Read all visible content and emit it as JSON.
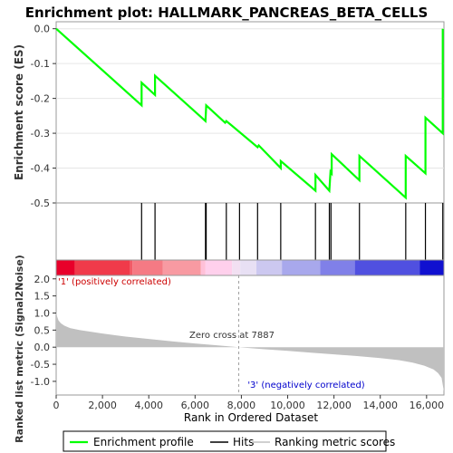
{
  "title": "Enrichment plot: HALLMARK_PANCREAS_BETA_CELLS",
  "colors": {
    "es_line": "#00ff00",
    "hits": "#000000",
    "metric_fill": "#c0c0c0",
    "pos_label": "#cc0000",
    "neg_label": "#0000cc",
    "zero_cross_line": "#a0a0a0"
  },
  "chart_data": [
    {
      "type": "line",
      "name": "enrichment-score-panel",
      "ylabel": "Enrichment score (ES)",
      "xlim": [
        0,
        16750
      ],
      "ylim": [
        -0.5,
        0.02
      ],
      "yticks": [
        0.0,
        -0.1,
        -0.2,
        -0.3,
        -0.4,
        -0.5
      ],
      "ytick_labels": [
        "0.0",
        "-0.1",
        "-0.2",
        "-0.3",
        "-0.4",
        "-0.5"
      ],
      "series": [
        {
          "x": [
            0,
            3690,
            3690,
            4270,
            4270,
            6450,
            6480,
            7300,
            7350,
            8700,
            8750,
            9700,
            9700,
            11200,
            11200,
            11800,
            11850,
            11900,
            11900,
            13100,
            13100,
            15100,
            15100,
            15950,
            15950,
            16700,
            16700
          ],
          "y": [
            0.0,
            -0.22,
            -0.155,
            -0.19,
            -0.135,
            -0.265,
            -0.22,
            -0.27,
            -0.265,
            -0.34,
            -0.335,
            -0.4,
            -0.38,
            -0.465,
            -0.42,
            -0.465,
            -0.41,
            -0.415,
            -0.36,
            -0.435,
            -0.365,
            -0.485,
            -0.365,
            -0.415,
            -0.255,
            -0.3,
            0.0
          ]
        }
      ]
    },
    {
      "type": "hits",
      "name": "hits-panel",
      "x": [
        3690,
        4270,
        6450,
        6480,
        7350,
        7920,
        8700,
        9700,
        11200,
        11800,
        11870,
        13100,
        15100,
        15950,
        16700
      ]
    },
    {
      "type": "heatmap",
      "name": "ranking-color-bar",
      "x": [
        0,
        800,
        3200,
        3300,
        4600,
        6250,
        6450,
        7600,
        7950,
        8650,
        9750,
        11400,
        12900,
        15700,
        16750
      ],
      "colors": [
        "#e8002a",
        "#f03a4a",
        "#f25a66",
        "#f57a84",
        "#f89aa2",
        "#ffc0d8",
        "#ffd0ec",
        "#f2e0f2",
        "#e8e0f4",
        "#ccc8f0",
        "#a8a8ec",
        "#8080e8",
        "#5050e0",
        "#1010d0"
      ]
    },
    {
      "type": "area",
      "name": "ranked-metric-panel",
      "ylabel": "Ranked list metric (Signal2Noise)",
      "xlabel": "Rank in Ordered Dataset",
      "xlim": [
        0,
        16750
      ],
      "ylim": [
        -1.4,
        2.1
      ],
      "yticks": [
        2.0,
        1.5,
        1.0,
        0.5,
        0.0,
        -0.5,
        -1.0
      ],
      "ytick_labels": [
        "2.0",
        "1.5",
        "1.0",
        "0.5",
        "0.0",
        "-0.5",
        "-1.0"
      ],
      "xticks": [
        0,
        2000,
        4000,
        6000,
        8000,
        10000,
        12000,
        14000,
        16000
      ],
      "xtick_labels": [
        "0",
        "2,000",
        "4,000",
        "6,000",
        "8,000",
        "10,000",
        "12,000",
        "14,000",
        "16,000"
      ],
      "x": [
        0,
        40,
        100,
        200,
        350,
        600,
        1000,
        2000,
        3000,
        4000,
        5000,
        6000,
        7000,
        7887,
        9000,
        10000,
        11000,
        12000,
        13000,
        14000,
        14800,
        15400,
        15900,
        16300,
        16500,
        16650,
        16700,
        16750
      ],
      "values": [
        1.05,
        0.9,
        0.78,
        0.7,
        0.63,
        0.56,
        0.5,
        0.4,
        0.31,
        0.24,
        0.17,
        0.11,
        0.05,
        0.0,
        -0.06,
        -0.11,
        -0.16,
        -0.21,
        -0.26,
        -0.32,
        -0.38,
        -0.45,
        -0.54,
        -0.65,
        -0.76,
        -0.9,
        -1.1,
        -1.3
      ],
      "annotations": {
        "positive": "'1' (positively correlated)",
        "zero_cross": "Zero cross at 7887",
        "negative": "'3' (negatively correlated)"
      },
      "zero_cross_x": 7887
    }
  ],
  "legend": {
    "items": [
      {
        "label": "Enrichment profile"
      },
      {
        "label": "Hits"
      },
      {
        "label": "Ranking metric scores"
      }
    ]
  }
}
